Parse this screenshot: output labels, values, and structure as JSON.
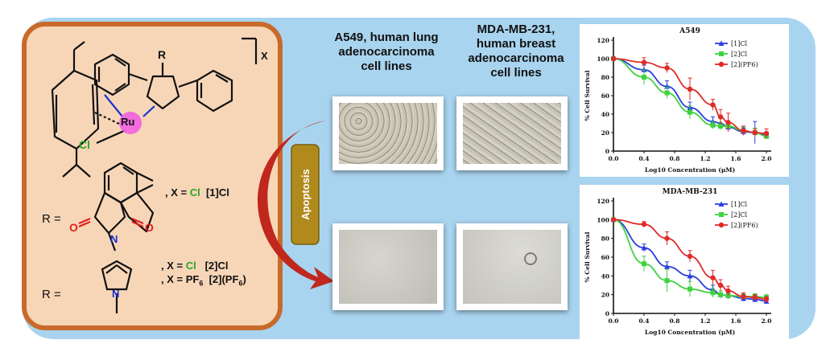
{
  "colors": {
    "background_panel": "#a9d4ef",
    "structure_box_fill": "#f7d6b8",
    "structure_box_border": "#c86a2a",
    "chlorine_green": "#2aa52a",
    "oxygen_red": "#e02020",
    "nitrogen_blue": "#1a2fd0",
    "ruthenium_pink": "#f060e0",
    "apoptosis_badge": "#b08a1c",
    "arrow_red": "#c0281e",
    "series_1": "#2a3ee0",
    "series_2": "#3fd23f",
    "series_3": "#e02a2a"
  },
  "structure": {
    "atom_ru": "Ru",
    "atom_cl": "Cl",
    "atom_r": "R",
    "counterion_x": "X",
    "r_label_1": "R =",
    "r_label_2": "R =",
    "oxygen_left": "O",
    "oxygen_right": "O",
    "nitrogen": "N",
    "pyrrole_n": "N",
    "compound_1_prefix": ", X = ",
    "compound_1_x": "Cl",
    "compound_1_name": "[1]Cl",
    "compound_2a_prefix": ", X = ",
    "compound_2a_x": "Cl",
    "compound_2a_name": "[2]Cl",
    "compound_2b_prefix": ", X = ",
    "compound_2b_x": "PF",
    "compound_2b_x_sub": "6",
    "compound_2b_name": "[2](PF",
    "compound_2b_name_sub": "6",
    "compound_2b_name_end": ")"
  },
  "apoptosis_label": "Apoptosis",
  "cell_line_1": {
    "line1": "A549, human lung",
    "line2": "adenocarcinoma",
    "line3": "cell lines"
  },
  "cell_line_2": {
    "line1": "MDA-MB-231,",
    "line2": "human breast",
    "line3": "adenocarcinoma",
    "line4": "cell lines"
  },
  "chart_data": [
    {
      "type": "line",
      "title": "A549",
      "xlabel": "Log10 Concentration (μM)",
      "ylabel": "% Cell Survival",
      "xlim": [
        0.0,
        2.0
      ],
      "ylim": [
        0,
        120
      ],
      "x_ticks": [
        "0.0",
        "0.4",
        "0.8",
        "1.2",
        "1.6",
        "2.0"
      ],
      "y_ticks": [
        "0",
        "20",
        "40",
        "60",
        "80",
        "100",
        "120"
      ],
      "legend_position": "top-right",
      "series": [
        {
          "name": "[1]Cl",
          "color": "#2a3ee0",
          "marker": "triangle",
          "x": [
            0.0,
            0.4,
            0.7,
            1.0,
            1.3,
            1.4,
            1.5,
            1.7,
            1.85,
            2.0
          ],
          "y": [
            100,
            88,
            70,
            47,
            32,
            30,
            26,
            21,
            20,
            17
          ],
          "err": [
            0,
            5,
            6,
            6,
            5,
            6,
            5,
            4,
            12,
            4
          ]
        },
        {
          "name": "[2]Cl",
          "color": "#3fd23f",
          "marker": "square",
          "x": [
            0.0,
            0.4,
            0.7,
            1.0,
            1.3,
            1.4,
            1.5,
            1.7,
            1.85,
            2.0
          ],
          "y": [
            100,
            80,
            63,
            42,
            28,
            27,
            27,
            22,
            20,
            16
          ],
          "err": [
            0,
            8,
            6,
            7,
            4,
            4,
            5,
            4,
            5,
            3
          ]
        },
        {
          "name": "[2](PF6)",
          "color": "#e02a2a",
          "marker": "circle",
          "x": [
            0.0,
            0.4,
            0.7,
            1.0,
            1.3,
            1.4,
            1.5,
            1.7,
            1.85,
            2.0
          ],
          "y": [
            100,
            96,
            90,
            67,
            50,
            37,
            31,
            22,
            20,
            19
          ],
          "err": [
            0,
            5,
            5,
            12,
            6,
            8,
            10,
            5,
            4,
            5
          ]
        }
      ]
    },
    {
      "type": "line",
      "title": "MDA-MB-231",
      "xlabel": "Log10 Concentration (μM)",
      "ylabel": "% Cell Survival",
      "xlim": [
        0.0,
        2.0
      ],
      "ylim": [
        0,
        120
      ],
      "x_ticks": [
        "0.0",
        "0.4",
        "0.8",
        "1.2",
        "1.6",
        "2.0"
      ],
      "y_ticks": [
        "0",
        "20",
        "40",
        "60",
        "80",
        "100",
        "120"
      ],
      "legend_position": "top-right",
      "series": [
        {
          "name": "[1]Cl",
          "color": "#2a3ee0",
          "marker": "triangle",
          "x": [
            0.0,
            0.4,
            0.7,
            1.0,
            1.3,
            1.4,
            1.5,
            1.7,
            1.85,
            2.0
          ],
          "y": [
            100,
            70,
            50,
            40,
            25,
            20,
            19,
            16,
            15,
            13
          ],
          "err": [
            0,
            4,
            5,
            6,
            5,
            4,
            3,
            3,
            3,
            3
          ]
        },
        {
          "name": "[2]Cl",
          "color": "#3fd23f",
          "marker": "square",
          "x": [
            0.0,
            0.4,
            0.7,
            1.0,
            1.3,
            1.4,
            1.5,
            1.7,
            1.85,
            2.0
          ],
          "y": [
            100,
            53,
            35,
            26,
            22,
            20,
            19,
            18,
            18,
            17
          ],
          "err": [
            0,
            8,
            12,
            8,
            5,
            4,
            4,
            3,
            3,
            3
          ]
        },
        {
          "name": "[2](PF6)",
          "color": "#e02a2a",
          "marker": "circle",
          "x": [
            0.0,
            0.4,
            0.7,
            1.0,
            1.3,
            1.4,
            1.5,
            1.7,
            1.85,
            2.0
          ],
          "y": [
            100,
            95,
            80,
            61,
            38,
            30,
            24,
            18,
            17,
            15
          ],
          "err": [
            0,
            3,
            7,
            6,
            8,
            6,
            5,
            4,
            3,
            3
          ]
        }
      ]
    }
  ]
}
